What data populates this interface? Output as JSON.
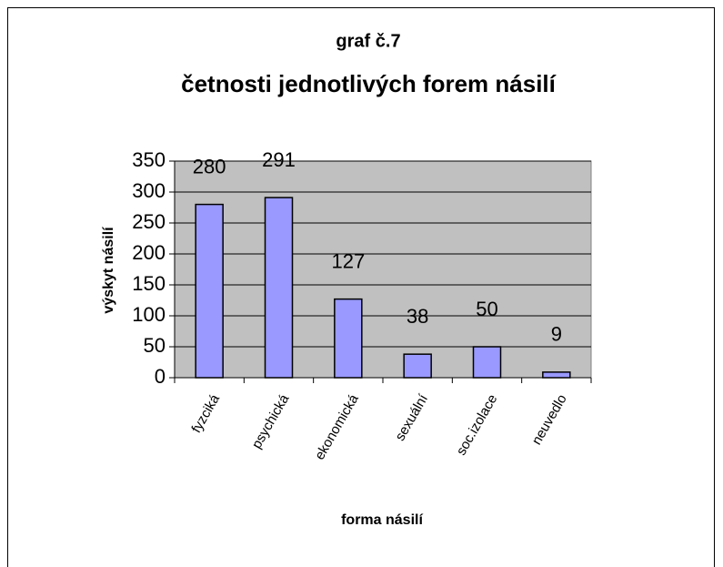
{
  "chart_data": {
    "type": "bar",
    "title": "graf č.7",
    "subtitle": "četnosti jednotlivých forem násilí",
    "categories": [
      "fyzciká",
      "psychická",
      "ekonomická",
      "sexuální",
      "soc.izolace",
      "neuvedlo"
    ],
    "values": [
      280,
      291,
      127,
      38,
      50,
      9
    ],
    "color": "#9999ff",
    "ylim": [
      0,
      350
    ],
    "yticks": [
      0,
      50,
      100,
      150,
      200,
      250,
      300,
      350
    ],
    "grid": true,
    "x_label": "forma násilí",
    "y_label": "výskyt násilí"
  }
}
